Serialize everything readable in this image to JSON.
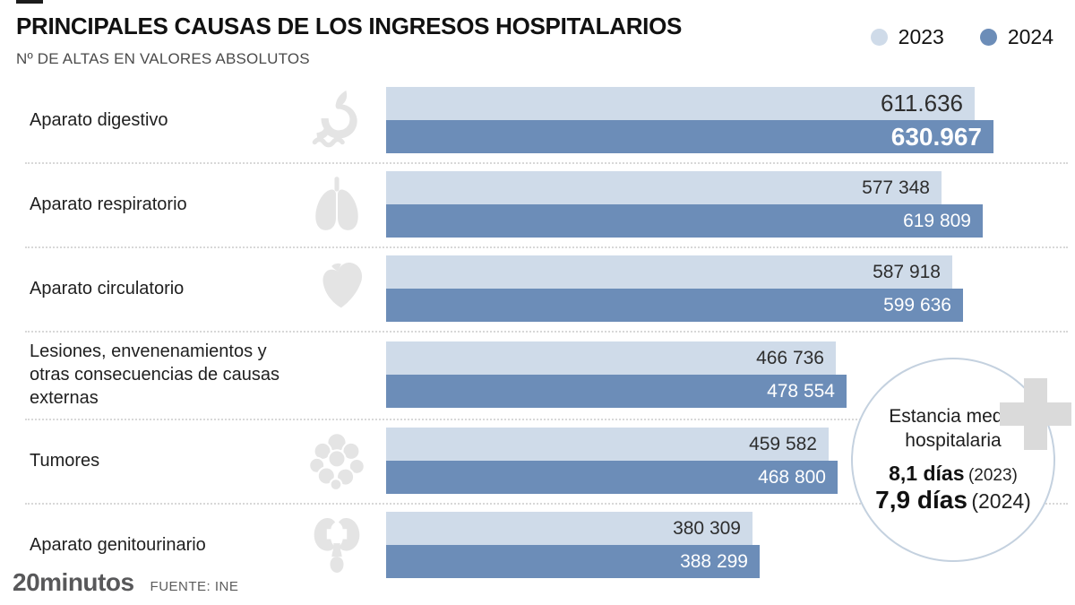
{
  "header": {
    "title": "PRINCIPALES CAUSAS DE LOS INGRESOS HOSPITALARIOS",
    "subtitle": "Nº DE ALTAS EN VALORES ABSOLUTOS",
    "legend": [
      {
        "label": "2023",
        "color": "#cfdbe9"
      },
      {
        "label": "2024",
        "color": "#6c8db8"
      }
    ]
  },
  "chart_data": {
    "type": "bar",
    "orientation": "horizontal",
    "title": "Principales causas de los ingresos hospitalarios",
    "xlabel": "Nº de altas en valores absolutos",
    "xlim": [
      0,
      630967
    ],
    "grid": false,
    "legend_position": "top-right",
    "categories": [
      "Aparato digestivo",
      "Aparato respiratorio",
      "Aparato circulatorio",
      "Lesiones, envenenamientos y otras consecuencias de causas externas",
      "Tumores",
      "Aparato genitourinario"
    ],
    "series": [
      {
        "name": "2023",
        "color": "#cfdbe9",
        "values": [
          611636,
          577348,
          587918,
          466736,
          459582,
          380309
        ]
      },
      {
        "name": "2024",
        "color": "#6c8db8",
        "values": [
          630967,
          619809,
          599636,
          478554,
          468800,
          388299
        ]
      }
    ]
  },
  "rows": [
    {
      "label": "Aparato digestivo",
      "icon": "stomach-icon",
      "v2023": 611636,
      "v2024": 630967,
      "label2023": "611.636",
      "label2024": "630.967",
      "big": true
    },
    {
      "label": "Aparato respiratorio",
      "icon": "lungs-icon",
      "v2023": 577348,
      "v2024": 619809,
      "label2023": "577 348",
      "label2024": "619 809",
      "big": false
    },
    {
      "label": "Aparato circulatorio",
      "icon": "heart-icon",
      "v2023": 587918,
      "v2024": 599636,
      "label2023": "587 918",
      "label2024": "599 636",
      "big": false
    },
    {
      "label": "Lesiones, envenenamientos y otras consecuencias de causas externas",
      "icon": "",
      "v2023": 466736,
      "v2024": 478554,
      "label2023": "466 736",
      "label2024": "478 554",
      "big": false
    },
    {
      "label": "Tumores",
      "icon": "tumor-icon",
      "v2023": 459582,
      "v2024": 468800,
      "label2023": "459 582",
      "label2024": "468 800",
      "big": false
    },
    {
      "label": "Aparato genitourinario",
      "icon": "kidneys-icon",
      "v2023": 380309,
      "v2024": 388299,
      "label2023": "380 309",
      "label2024": "388 299",
      "big": false
    }
  ],
  "callout": {
    "title": "Estancia media hospitalaria",
    "entries": [
      {
        "value": "8,1 días",
        "year": "(2023)"
      },
      {
        "value": "7,9 días",
        "year": "(2024)"
      }
    ]
  },
  "footer": {
    "logo": "20minutos",
    "source": "FUENTE: INE"
  },
  "colors": {
    "bar_2023": "#cfdbe9",
    "bar_2024": "#6c8db8",
    "icon_gray": "#e4e4e4",
    "separator": "#d8d8d8"
  }
}
